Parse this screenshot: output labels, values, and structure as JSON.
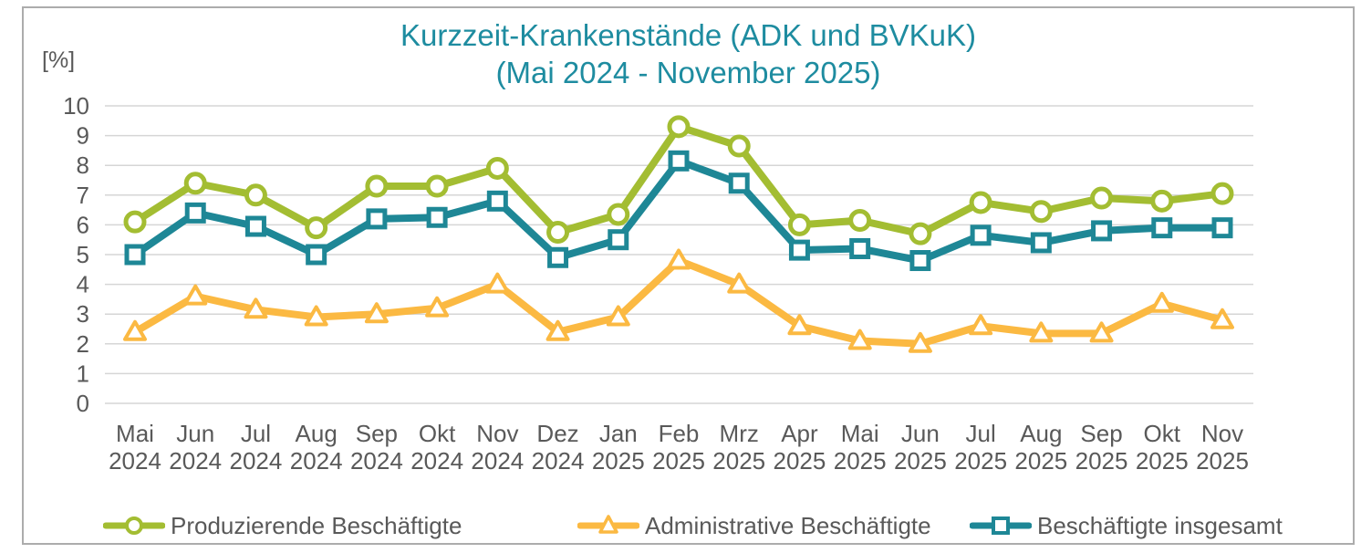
{
  "title": {
    "line1": "Kurzzeit-Krankenstände (ADK und BVKuK)",
    "line2": "(Mai 2024 - November 2025)",
    "color": "#1E8CA0"
  },
  "axis_unit_label": "[%]",
  "colors": {
    "grid": "#D6D6D6",
    "tick_text": "#595959",
    "panel_border": "#ACACAC",
    "title": "#1E8CA0"
  },
  "chart_data": {
    "type": "line",
    "title": "Kurzzeit-Krankenstände (ADK und BVKuK)",
    "subtitle": "(Mai 2024 - November 2025)",
    "xlabel": "",
    "ylabel": "[%]",
    "ylim": [
      0,
      10
    ],
    "yticks": [
      0,
      1,
      2,
      3,
      4,
      5,
      6,
      7,
      8,
      9,
      10
    ],
    "grid": true,
    "legend_position": "bottom",
    "categories": [
      "Mai 2024",
      "Jun 2024",
      "Jul 2024",
      "Aug 2024",
      "Sep 2024",
      "Okt 2024",
      "Nov 2024",
      "Dez 2024",
      "Jan 2025",
      "Feb 2025",
      "Mrz 2025",
      "Apr 2025",
      "Mai 2025",
      "Jun 2025",
      "Jul 2025",
      "Aug 2025",
      "Sep 2025",
      "Okt 2025",
      "Nov 2025"
    ],
    "series": [
      {
        "name": "Produzierende Beschäftigte",
        "marker": "circle",
        "color": "#A3BD32",
        "values": [
          6.1,
          7.4,
          7.0,
          5.9,
          7.3,
          7.3,
          7.9,
          5.75,
          6.35,
          9.3,
          8.65,
          6.0,
          6.15,
          5.7,
          6.75,
          6.45,
          6.9,
          6.8,
          7.05
        ]
      },
      {
        "name": "Administrative Beschäftigte",
        "marker": "triangle",
        "color": "#FBB942",
        "values": [
          2.4,
          3.6,
          3.15,
          2.9,
          3.0,
          3.2,
          4.0,
          2.4,
          2.9,
          4.8,
          4.0,
          2.6,
          2.1,
          2.0,
          2.6,
          2.35,
          2.35,
          3.35,
          2.8
        ]
      },
      {
        "name": "Beschäftigte insgesamt",
        "marker": "square",
        "color": "#1E8796",
        "values": [
          5.0,
          6.4,
          5.95,
          5.0,
          6.2,
          6.25,
          6.8,
          4.9,
          5.5,
          8.15,
          7.4,
          5.15,
          5.2,
          4.8,
          5.65,
          5.4,
          5.8,
          5.9,
          5.9
        ]
      }
    ]
  }
}
